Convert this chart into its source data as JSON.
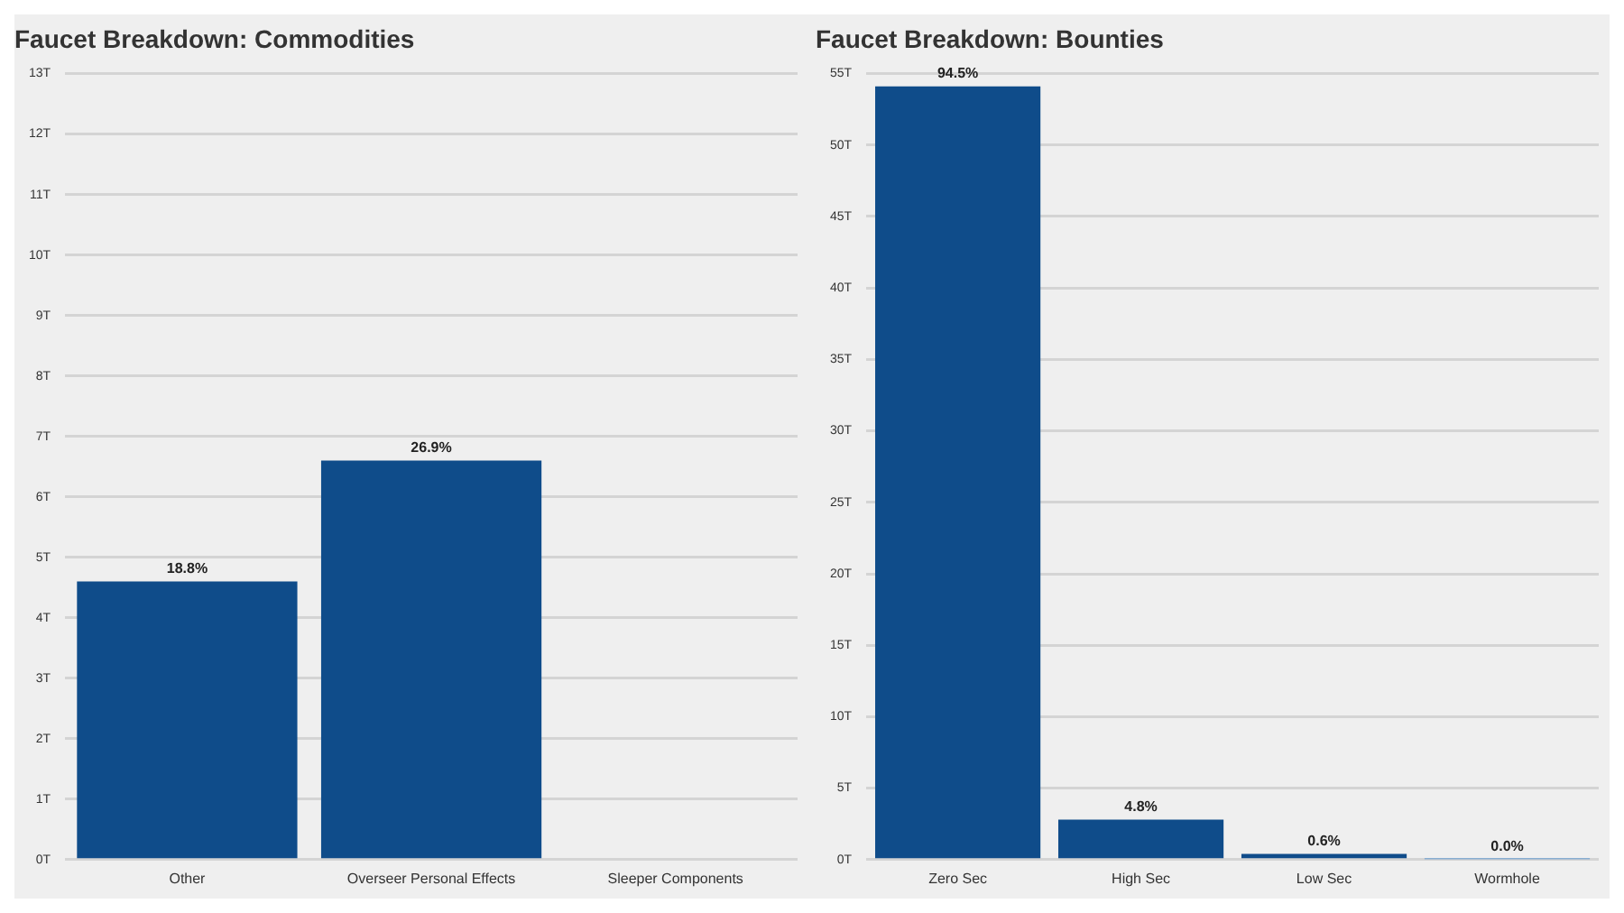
{
  "chart_data": [
    {
      "type": "bar",
      "title": "Faucet Breakdown: Commodities",
      "categories": [
        "Other",
        "Overseer Personal Effects",
        "Sleeper Components"
      ],
      "values": [
        4.6,
        6.6,
        0
      ],
      "color": "#0f4c8a",
      "annotations": [
        {
          "text": "18.8%",
          "x": "Other",
          "y": 4.6
        },
        {
          "text": "26.9%",
          "x": "Overseer Personal Effects",
          "y": 6.6
        }
      ],
      "ylim": [
        0,
        13
      ],
      "yticks": [
        {
          "value": 0,
          "label": "0T"
        },
        {
          "value": 1,
          "label": "1T"
        },
        {
          "value": 2,
          "label": "2T"
        },
        {
          "value": 3,
          "label": "3T"
        },
        {
          "value": 4,
          "label": "4T"
        },
        {
          "value": 5,
          "label": "5T"
        },
        {
          "value": 6,
          "label": "6T"
        },
        {
          "value": 7,
          "label": "7T"
        },
        {
          "value": 8,
          "label": "8T"
        },
        {
          "value": 9,
          "label": "9T"
        },
        {
          "value": 10,
          "label": "10T"
        },
        {
          "value": 11,
          "label": "11T"
        },
        {
          "value": 12,
          "label": "12T"
        },
        {
          "value": 13,
          "label": "13T"
        }
      ],
      "grid": "y"
    },
    {
      "type": "bar",
      "title": "Faucet Breakdown: Bounties",
      "categories": [
        "Zero Sec",
        "High Sec",
        "Low Sec",
        "Wormhole"
      ],
      "values": [
        54.1,
        2.8,
        0.4,
        0.02
      ],
      "colors": [
        "#0f4c8a",
        "#0f4c8a",
        "#0f4c8a",
        "#6fa0d0"
      ],
      "annotations": [
        {
          "text": "94.5%",
          "x": "Zero Sec",
          "y": 54.1
        },
        {
          "text": "4.8%",
          "x": "High Sec",
          "y": 2.8
        },
        {
          "text": "0.6%",
          "x": "Low Sec",
          "y": 0.4
        },
        {
          "text": "0.0%",
          "x": "Wormhole",
          "y": 0.02
        }
      ],
      "ylim": [
        0,
        55
      ],
      "yticks": [
        {
          "value": 0,
          "label": "0T"
        },
        {
          "value": 5,
          "label": "5T"
        },
        {
          "value": 10,
          "label": "10T"
        },
        {
          "value": 15,
          "label": "15T"
        },
        {
          "value": 20,
          "label": "20T"
        },
        {
          "value": 25,
          "label": "25T"
        },
        {
          "value": 30,
          "label": "30T"
        },
        {
          "value": 35,
          "label": "35T"
        },
        {
          "value": 40,
          "label": "40T"
        },
        {
          "value": 45,
          "label": "45T"
        },
        {
          "value": 50,
          "label": "50T"
        },
        {
          "value": 55,
          "label": "55T"
        }
      ],
      "grid": "y"
    }
  ]
}
